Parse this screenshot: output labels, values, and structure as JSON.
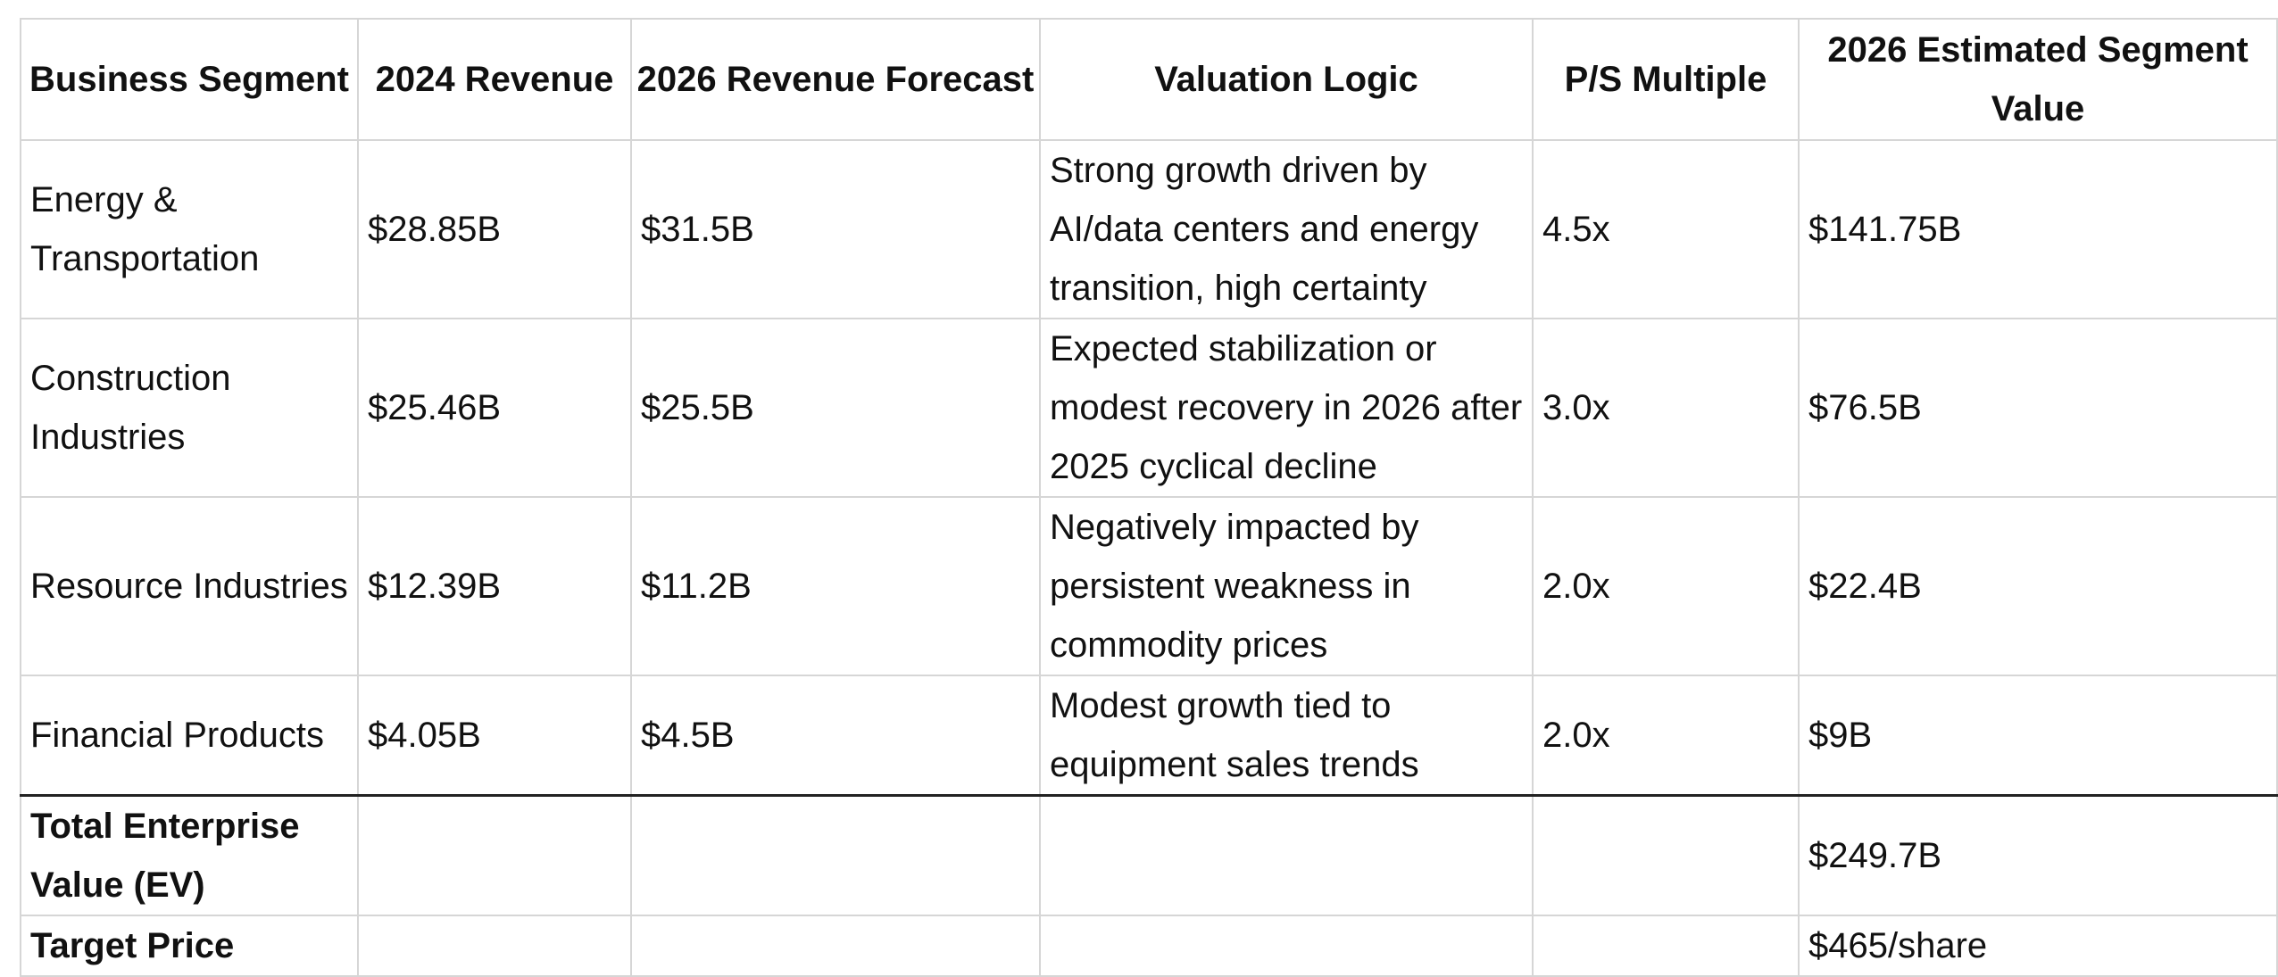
{
  "table": {
    "headers": [
      "Business Segment",
      "2024 Revenue",
      "2026 Revenue Forecast",
      "Valuation Logic",
      "P/S Multiple",
      "2026 Estimated Segment Value"
    ],
    "rows": [
      {
        "segment": "Energy & Transportation",
        "rev_2024": "$28.85B",
        "rev_2026": "$31.5B",
        "logic": "Strong growth driven by AI/data centers and energy transition, high certainty",
        "multiple": "4.5x",
        "value": "$141.75B"
      },
      {
        "segment": "Construction Industries",
        "rev_2024": "$25.46B",
        "rev_2026": "$25.5B",
        "logic": "Expected stabilization or modest recovery in 2026 after 2025 cyclical decline",
        "multiple": "3.0x",
        "value": "$76.5B"
      },
      {
        "segment": "Resource Industries",
        "rev_2024": "$12.39B",
        "rev_2026": "$11.2B",
        "logic": "Negatively impacted by persistent weakness in commodity prices",
        "multiple": "2.0x",
        "value": "$22.4B"
      },
      {
        "segment": "Financial Products",
        "rev_2024": "$4.05B",
        "rev_2026": "$4.5B",
        "logic": "Modest growth tied to equipment sales trends",
        "multiple": "2.0x",
        "value": "$9B"
      }
    ],
    "total": {
      "label": "Total Enterprise Value (EV)",
      "value": "$249.7B"
    },
    "target": {
      "label": "Target Price",
      "value": "$465/share"
    }
  }
}
